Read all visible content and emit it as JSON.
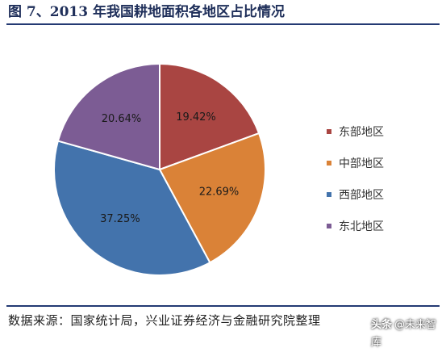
{
  "title": "图 7、2013 年我国耕地面积各地区占比情况",
  "source": "数据来源：国家统计局，兴业证券经济与金融研究院整理",
  "watermark": {
    "logo": "头条",
    "text": "@未来智库"
  },
  "chart_data": {
    "type": "pie",
    "categories": [
      "东部地区",
      "中部地区",
      "西部地区",
      "东北地区"
    ],
    "values": [
      19.42,
      22.69,
      37.25,
      20.64
    ],
    "labels": [
      "19.42%",
      "22.69%",
      "37.25%",
      "20.64%"
    ],
    "colors": [
      "#a94542",
      "#da8237",
      "#4373ac",
      "#7c5c94"
    ],
    "legend_position": "right"
  }
}
